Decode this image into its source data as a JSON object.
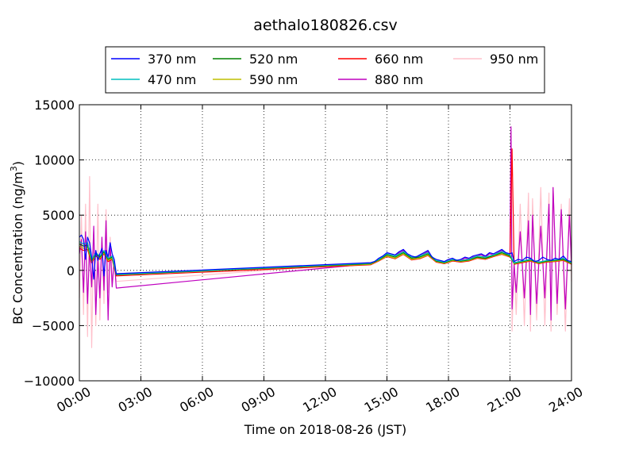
{
  "chart_data": {
    "type": "line",
    "title": "aethalo180826.csv",
    "xlabel": "Time on 2018-08-26 (JST)",
    "ylabel_main": "BC Concentration (ng/m",
    "ylabel_sup": "3",
    "ylabel_close": ")",
    "xlim": [
      0,
      24
    ],
    "ylim": [
      -10000,
      15000
    ],
    "x_ticks": [
      0,
      3,
      6,
      9,
      12,
      15,
      18,
      21,
      24
    ],
    "x_tick_labels": [
      "00:00",
      "03:00",
      "06:00",
      "09:00",
      "12:00",
      "15:00",
      "18:00",
      "21:00",
      "24:00"
    ],
    "y_ticks": [
      -10000,
      -5000,
      0,
      5000,
      10000,
      15000
    ],
    "y_tick_labels": [
      "−10000",
      "−5000",
      "0",
      "5000",
      "10000",
      "15000"
    ],
    "grid": true,
    "legend_position": "top-center",
    "series": [
      {
        "name": "370 nm",
        "color": "#0000ff",
        "scale": 1.0,
        "x": [
          0,
          0.1,
          0.2,
          0.3,
          0.4,
          0.5,
          0.6,
          0.7,
          0.8,
          0.9,
          1.0,
          1.1,
          1.2,
          1.3,
          1.4,
          1.5,
          1.6,
          1.7,
          1.8,
          14.2,
          14.4,
          14.6,
          14.8,
          15.0,
          15.2,
          15.4,
          15.6,
          15.8,
          16.0,
          16.2,
          16.4,
          16.6,
          16.8,
          17.0,
          17.2,
          17.4,
          17.6,
          17.8,
          18.0,
          18.2,
          18.4,
          18.6,
          18.8,
          19.0,
          19.2,
          19.4,
          19.6,
          19.8,
          20.0,
          20.2,
          20.4,
          20.6,
          20.8,
          21.0,
          21.1,
          21.2,
          21.4,
          21.6,
          21.8,
          22.0,
          22.2,
          22.4,
          22.6,
          22.8,
          23.0,
          23.2,
          23.4,
          23.6,
          23.8,
          24.0
        ],
        "y": [
          3000,
          3200,
          2800,
          1000,
          3000,
          2500,
          1200,
          -800,
          1800,
          900,
          1500,
          2000,
          -500,
          1800,
          1200,
          2500,
          1500,
          1000,
          -300,
          700,
          800,
          1100,
          1300,
          1600,
          1500,
          1400,
          1700,
          1900,
          1500,
          1300,
          1200,
          1400,
          1600,
          1800,
          1200,
          1000,
          900,
          800,
          1000,
          1100,
          900,
          1000,
          1200,
          1100,
          1300,
          1400,
          1500,
          1300,
          1600,
          1500,
          1700,
          1900,
          1600,
          1500,
          1600,
          800,
          1000,
          900,
          1200,
          1100,
          800,
          900,
          1200,
          1000,
          900,
          1100,
          1000,
          1300,
          900,
          800
        ]
      },
      {
        "name": "470 nm",
        "color": "#00bfbf",
        "scale": 0.95,
        "x": [
          0,
          0.2,
          0.4,
          0.6,
          0.8,
          1.0,
          1.2,
          1.4,
          1.6,
          1.8,
          14.2,
          14.6,
          15.0,
          15.4,
          15.8,
          16.2,
          16.6,
          17.0,
          17.4,
          17.8,
          18.2,
          18.6,
          19.0,
          19.4,
          19.8,
          20.2,
          20.6,
          21.0,
          21.2,
          21.6,
          22.0,
          22.4,
          22.8,
          23.2,
          23.6,
          24.0
        ],
        "y": [
          2600,
          2400,
          2500,
          1000,
          1600,
          1300,
          1800,
          1100,
          1300,
          -350,
          650,
          1000,
          1500,
          1300,
          1700,
          1200,
          1300,
          1600,
          900,
          750,
          1000,
          900,
          1000,
          1300,
          1200,
          1400,
          1700,
          1400,
          700,
          850,
          1000,
          750,
          900,
          950,
          1100,
          700
        ]
      },
      {
        "name": "520 nm",
        "color": "#008000",
        "scale": 0.9,
        "x": [
          0,
          0.2,
          0.4,
          0.6,
          0.8,
          1.0,
          1.2,
          1.4,
          1.6,
          1.8,
          14.2,
          14.6,
          15.0,
          15.4,
          15.8,
          16.2,
          16.6,
          17.0,
          17.4,
          17.8,
          18.2,
          18.6,
          19.0,
          19.4,
          19.8,
          20.2,
          20.6,
          21.0,
          21.2,
          21.6,
          22.0,
          22.4,
          22.8,
          23.2,
          23.6,
          24.0
        ],
        "y": [
          2400,
          2200,
          2300,
          900,
          1500,
          1200,
          1700,
          1000,
          1200,
          -400,
          600,
          950,
          1400,
          1200,
          1600,
          1100,
          1200,
          1500,
          850,
          700,
          950,
          850,
          950,
          1200,
          1100,
          1350,
          1600,
          1300,
          650,
          800,
          950,
          700,
          850,
          900,
          1000,
          650
        ]
      },
      {
        "name": "590 nm",
        "color": "#bfbf00",
        "scale": 0.85,
        "x": [
          0,
          0.2,
          0.4,
          0.6,
          0.8,
          1.0,
          1.2,
          1.4,
          1.6,
          1.8,
          14.2,
          14.6,
          15.0,
          15.4,
          15.8,
          16.2,
          16.6,
          17.0,
          17.4,
          17.8,
          18.2,
          18.6,
          19.0,
          19.4,
          19.8,
          20.2,
          20.6,
          21.0,
          21.2,
          21.6,
          22.0,
          22.4,
          22.8,
          23.2,
          23.6,
          24.0
        ],
        "y": [
          2200,
          2000,
          2100,
          800,
          1400,
          1100,
          1600,
          900,
          1100,
          -300,
          550,
          900,
          1300,
          1100,
          1500,
          1000,
          1100,
          1400,
          800,
          650,
          900,
          800,
          900,
          1150,
          1050,
          1300,
          1500,
          1250,
          600,
          750,
          900,
          650,
          800,
          850,
          950,
          600
        ]
      },
      {
        "name": "660 nm",
        "color": "#ff0000",
        "scale": 0.85,
        "x": [
          0,
          0.2,
          0.4,
          0.6,
          0.8,
          1.0,
          1.2,
          1.4,
          1.6,
          1.8,
          14.2,
          14.6,
          15.0,
          15.4,
          15.8,
          16.2,
          16.6,
          17.0,
          17.4,
          17.8,
          18.2,
          18.6,
          19.0,
          19.4,
          19.8,
          20.2,
          20.6,
          21.0,
          21.1,
          21.2,
          21.6,
          22.0,
          22.4,
          22.8,
          23.2,
          23.6,
          24.0
        ],
        "y": [
          2000,
          1800,
          1900,
          700,
          1300,
          1000,
          1500,
          800,
          1000,
          -500,
          500,
          850,
          1250,
          1050,
          1450,
          950,
          1050,
          1350,
          750,
          600,
          850,
          750,
          850,
          1100,
          1000,
          1250,
          1450,
          1200,
          11000,
          550,
          700,
          850,
          600,
          750,
          800,
          900,
          550
        ]
      },
      {
        "name": "880 nm",
        "color": "#bf00bf",
        "scale": 1.0,
        "x": [
          0,
          0.1,
          0.2,
          0.3,
          0.4,
          0.5,
          0.6,
          0.7,
          0.8,
          0.9,
          1.0,
          1.1,
          1.2,
          1.3,
          1.4,
          1.5,
          1.6,
          1.7,
          1.8,
          14.2,
          14.4,
          14.6,
          14.8,
          15.0,
          15.2,
          15.4,
          15.6,
          15.8,
          16.0,
          16.2,
          16.4,
          16.6,
          16.8,
          17.0,
          17.2,
          17.4,
          17.6,
          17.8,
          18.0,
          18.2,
          18.4,
          18.6,
          18.8,
          19.0,
          19.2,
          19.4,
          19.6,
          19.8,
          20.0,
          20.2,
          20.4,
          20.6,
          20.8,
          21.0,
          21.05,
          21.1,
          21.2,
          21.3,
          21.5,
          21.7,
          21.9,
          22.0,
          22.1,
          22.3,
          22.5,
          22.7,
          22.9,
          23.0,
          23.1,
          23.3,
          23.5,
          23.7,
          23.9,
          24.0
        ],
        "y": [
          1500,
          2800,
          -2000,
          3500,
          -3000,
          2000,
          -1500,
          4000,
          -4000,
          1000,
          -2500,
          3000,
          -1800,
          4500,
          -4500,
          2500,
          -1500,
          1000,
          -1600,
          600,
          700,
          1000,
          1200,
          1500,
          1400,
          1300,
          1600,
          1800,
          1400,
          1200,
          1100,
          1300,
          1500,
          1700,
          1100,
          900,
          800,
          700,
          900,
          1000,
          800,
          900,
          1100,
          1000,
          1200,
          1300,
          1400,
          1200,
          1500,
          1400,
          1600,
          1800,
          1500,
          1400,
          13000,
          -3500,
          500,
          -2000,
          3500,
          -2500,
          4500,
          -4000,
          5000,
          -3000,
          4000,
          -2500,
          6000,
          -4500,
          7500,
          -3000,
          5500,
          -3500,
          5000,
          500
        ]
      },
      {
        "name": "950 nm",
        "color": "#ffc0cb",
        "scale": 1.0,
        "x": [
          0,
          0.1,
          0.2,
          0.3,
          0.4,
          0.5,
          0.6,
          0.7,
          0.8,
          0.9,
          1.0,
          1.1,
          1.2,
          1.3,
          1.4,
          1.5,
          1.6,
          1.7,
          1.8,
          14.2,
          14.4,
          14.6,
          14.8,
          15.0,
          15.2,
          15.4,
          15.6,
          15.8,
          16.0,
          16.2,
          16.4,
          16.6,
          16.8,
          17.0,
          17.2,
          17.4,
          17.6,
          17.8,
          18.0,
          18.2,
          18.4,
          18.6,
          18.8,
          19.0,
          19.2,
          19.4,
          19.6,
          19.8,
          20.0,
          20.2,
          20.4,
          20.6,
          20.8,
          21.0,
          21.05,
          21.1,
          21.2,
          21.3,
          21.5,
          21.7,
          21.9,
          22.0,
          22.1,
          22.3,
          22.5,
          22.7,
          22.9,
          23.0,
          23.1,
          23.3,
          23.5,
          23.7,
          23.9,
          24.0
        ],
        "y": [
          -2500,
          5000,
          -4000,
          6000,
          -6000,
          8500,
          -7000,
          3500,
          -5000,
          6000,
          -4500,
          2500,
          -3000,
          5500,
          -2000,
          3000,
          -1000,
          500,
          -1000,
          700,
          800,
          1100,
          1300,
          1600,
          1500,
          1400,
          1700,
          1900,
          1500,
          1300,
          1200,
          1400,
          1600,
          1800,
          1200,
          1000,
          900,
          800,
          1000,
          1100,
          900,
          1000,
          1200,
          1100,
          1300,
          1400,
          1500,
          1300,
          1600,
          1500,
          1700,
          1900,
          1600,
          1500,
          12500,
          -5500,
          1000,
          -4000,
          6000,
          -5000,
          7000,
          -5500,
          6500,
          -4500,
          7500,
          -5000,
          7000,
          -5500,
          7500,
          -4000,
          6000,
          -5500,
          6500,
          -1000
        ]
      }
    ]
  }
}
